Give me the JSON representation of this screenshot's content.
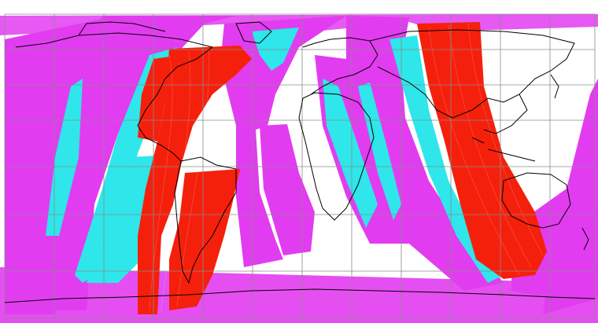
{
  "map": {
    "projection": "cylindrical-world",
    "background_color": "#ffffff",
    "grid": {
      "visible": true,
      "color": "#8a8a8a"
    },
    "coastline_color": "#000000",
    "swath_colors": {
      "magenta": "#e23cf0",
      "cyan": "#2fe6ea",
      "red": "#f5200c"
    }
  }
}
